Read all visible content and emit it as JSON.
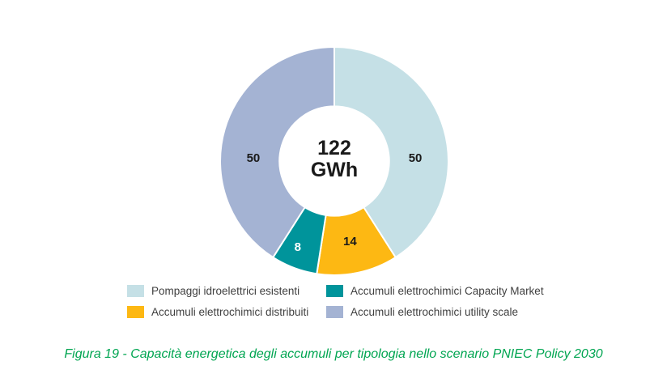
{
  "figure": {
    "caption": "Figura 19 - Capacità energetica degli accumuli per tipologia nello scenario PNIEC Policy 2030"
  },
  "chart_data": {
    "type": "pie",
    "subtype": "donut",
    "title": "",
    "units": "GWh",
    "total": 122,
    "center_label": {
      "value": "122",
      "unit": "GWh"
    },
    "segments": [
      {
        "label": "Pompaggi idroelettrici esistenti",
        "value": 50,
        "color": "#C5E0E6",
        "value_label_color": "#1A1A1A"
      },
      {
        "label": "Accumuli elettrochimici distribuiti",
        "value": 14,
        "color": "#FDB813",
        "value_label_color": "#1A1A1A"
      },
      {
        "label": "Accumuli elettrochimici Capacity Market",
        "value": 8,
        "color": "#00949B",
        "value_label_color": "#FFFFFF"
      },
      {
        "label": "Accumuli elettrochimici utility scale",
        "value": 50,
        "color": "#A4B3D3",
        "value_label_color": "#1A1A1A"
      }
    ],
    "layout": {
      "start_angle_deg": 0,
      "direction": "clockwise",
      "inner_radius_ratio": 0.48,
      "segment_border_color": "#FFFFFF",
      "legend_position": "bottom",
      "legend_row_major_order": [
        0,
        2,
        1,
        3
      ],
      "value_label_positions": [
        {
          "angle_deg": 88,
          "radius_ratio": 0.71
        },
        {
          "angle_deg": 169,
          "radius_ratio": 0.72
        },
        {
          "angle_deg": 203,
          "radius_ratio": 0.82
        },
        {
          "angle_deg": 272,
          "radius_ratio": 0.71
        }
      ]
    },
    "colors": {
      "caption_text": "#00A551",
      "legend_text": "#404040",
      "center_text": "#1A1A1A"
    }
  }
}
